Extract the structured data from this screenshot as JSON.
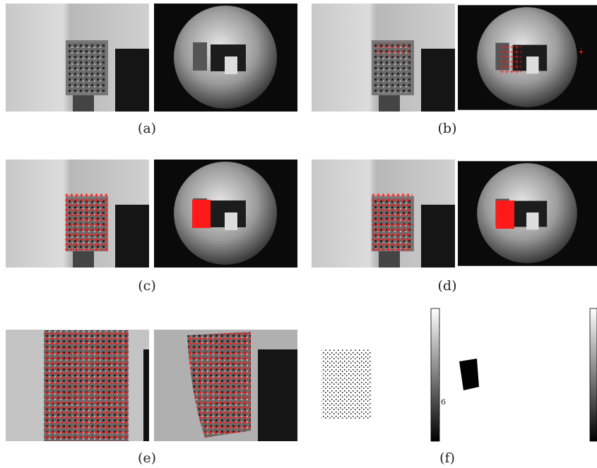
{
  "panels": [
    {
      "caption": "(a)"
    },
    {
      "caption": "(b)"
    },
    {
      "caption": "(c)"
    },
    {
      "caption": "(d)"
    },
    {
      "caption": "(e)"
    },
    {
      "caption": "(f)",
      "colorbar_label": "6"
    }
  ]
}
